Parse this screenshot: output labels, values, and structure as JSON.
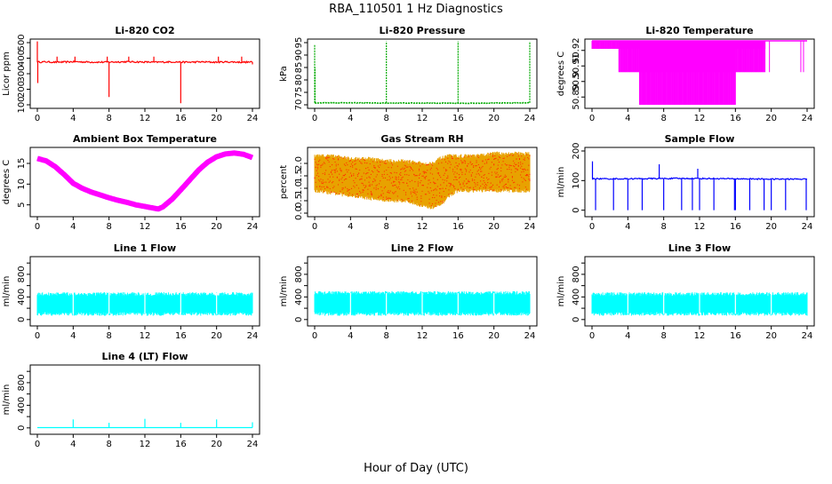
{
  "title": "RBA_110501  1 Hz Diagnostics",
  "xlabel": "Hour of Day (UTC)",
  "chart_data": [
    {
      "type": "line",
      "title": "Li-820 CO2",
      "ylabel": "Licor ppm",
      "color": "#ff0000",
      "xlim": [
        0,
        24
      ],
      "ylim": [
        100,
        500
      ],
      "xticks": [
        0,
        4,
        8,
        12,
        16,
        20,
        24
      ],
      "yticks": [
        100,
        200,
        300,
        400,
        500
      ],
      "series": [
        {
          "baseline": 375,
          "noise": 10,
          "x": [
            0,
            1,
            2,
            3,
            4,
            5,
            6,
            7,
            8,
            9,
            10,
            11,
            12,
            13,
            14,
            15,
            16,
            17,
            18,
            19,
            20,
            21,
            22,
            23,
            24
          ],
          "y": [
            375,
            376,
            374,
            375,
            377,
            376,
            375,
            374,
            375,
            376,
            377,
            376,
            375,
            374,
            375,
            376,
            375,
            374,
            376,
            375,
            374,
            376,
            375,
            374,
            375
          ],
          "spikes": [
            [
              0,
              540
            ],
            [
              0.05,
              240
            ],
            [
              2.2,
              410
            ],
            [
              4.2,
              410
            ],
            [
              7.8,
              410
            ],
            [
              8.0,
              150
            ],
            [
              10.2,
              410
            ],
            [
              13.0,
              410
            ],
            [
              16.0,
              110
            ],
            [
              20.2,
              410
            ],
            [
              22.8,
              410
            ],
            [
              24,
              360
            ]
          ]
        }
      ]
    },
    {
      "type": "line",
      "title": "Li-820 Pressure",
      "ylabel": "kPa",
      "color": "#00aa00",
      "xlim": [
        0,
        24
      ],
      "ylim": [
        70,
        95
      ],
      "xticks": [
        0,
        4,
        8,
        12,
        16,
        20,
        24
      ],
      "yticks": [
        70,
        75,
        80,
        85,
        90,
        95
      ],
      "series": [
        {
          "baseline": 70.8,
          "noise": 0.2,
          "x": [
            0,
            4,
            8,
            12,
            16,
            20,
            24
          ],
          "y": [
            70.8,
            70.8,
            70.7,
            70.7,
            70.6,
            70.7,
            70.8
          ],
          "spikes": [
            [
              0,
              94
            ],
            [
              0.05,
              85
            ],
            [
              8.0,
              97
            ],
            [
              16.0,
              97
            ],
            [
              24.0,
              97
            ]
          ]
        }
      ]
    },
    {
      "type": "line",
      "title": "Li-820 Temperature",
      "ylabel": "degrees C",
      "color": "#ff00ff",
      "xlim": [
        0,
        24
      ],
      "ylim": [
        50.885,
        50.925
      ],
      "xticks": [
        0,
        4,
        8,
        12,
        16,
        20,
        24
      ],
      "yticks": [
        50.89,
        50.9,
        50.91,
        50.92
      ],
      "ytick_labels": [
        "50.89",
        "",
        "",
        "50.92"
      ],
      "ytick_labels_right": [
        "",
        "50.9",
        "50.91",
        ""
      ],
      "bands": [
        {
          "x0": 0.0,
          "x1": 19.3,
          "ylo": 50.921,
          "yhi": 50.927
        },
        {
          "x0": 3.0,
          "x1": 19.3,
          "ylo": 50.906,
          "yhi": 50.927
        },
        {
          "x0": 5.3,
          "x1": 16.0,
          "ylo": 50.885,
          "yhi": 50.927
        }
      ]
    },
    {
      "type": "line",
      "title": "Ambient Box Temperature",
      "ylabel": "degrees C",
      "color": "#ff00ff",
      "xlim": [
        0,
        24
      ],
      "ylim": [
        3,
        18
      ],
      "xticks": [
        0,
        4,
        8,
        12,
        16,
        20,
        24
      ],
      "yticks": [
        5,
        10,
        15
      ],
      "series": [
        {
          "x": [
            0,
            1,
            2,
            3,
            4,
            5,
            6,
            7,
            8,
            9,
            10,
            11,
            12,
            13,
            13.5,
            14,
            15,
            16,
            17,
            18,
            19,
            20,
            21,
            22,
            23,
            24
          ],
          "y": [
            16.2,
            15.6,
            14.2,
            12.3,
            10.2,
            9.0,
            8.1,
            7.4,
            6.7,
            6.1,
            5.6,
            5.0,
            4.6,
            4.2,
            4.0,
            4.5,
            6.3,
            8.6,
            11.0,
            13.4,
            15.3,
            16.6,
            17.3,
            17.5,
            17.2,
            16.4
          ]
        }
      ]
    },
    {
      "type": "line",
      "title": "Gas Stream RH",
      "ylabel": "percent",
      "color": "#e8a200",
      "xlim": [
        0,
        24
      ],
      "ylim": [
        0,
        2.5
      ],
      "xticks": [
        0,
        4,
        8,
        12,
        16,
        20,
        24
      ],
      "yticks": [
        0.0,
        0.5,
        1.0,
        1.5,
        2.0
      ],
      "ytick_labels": [
        "0.0",
        "0.5",
        "1.0",
        "1.5",
        "2.0"
      ],
      "envelope": {
        "x": [
          0,
          2,
          4,
          6,
          8,
          10,
          12,
          13,
          14,
          15,
          16,
          18,
          20,
          22,
          24
        ],
        "ymin": [
          0.9,
          0.8,
          0.7,
          0.6,
          0.5,
          0.5,
          0.3,
          0.2,
          0.3,
          0.7,
          0.9,
          0.9,
          0.9,
          0.9,
          0.9
        ],
        "ymax": [
          2.3,
          2.3,
          2.2,
          2.2,
          2.1,
          2.1,
          2.0,
          2.0,
          2.2,
          2.3,
          2.3,
          2.3,
          2.4,
          2.4,
          2.4
        ]
      }
    },
    {
      "type": "line",
      "title": "Sample Flow",
      "ylabel": "ml/min",
      "color": "#0000ff",
      "xlim": [
        0,
        24
      ],
      "ylim": [
        -10,
        200
      ],
      "xticks": [
        0,
        4,
        8,
        12,
        16,
        20,
        24
      ],
      "yticks": [
        0,
        100,
        200
      ],
      "series": [
        {
          "baseline": 106,
          "noise": 4,
          "x": [
            0,
            4,
            8,
            12,
            16,
            20,
            24
          ],
          "y": [
            106,
            106,
            107,
            107,
            106,
            105,
            105
          ],
          "spikes": [
            [
              0.05,
              165
            ],
            [
              0.4,
              0
            ],
            [
              2.4,
              0
            ],
            [
              4.0,
              0
            ],
            [
              5.6,
              0
            ],
            [
              7.5,
              155
            ],
            [
              8.0,
              0
            ],
            [
              10.0,
              0
            ],
            [
              11.2,
              0
            ],
            [
              11.8,
              140
            ],
            [
              12.0,
              0
            ],
            [
              13.6,
              0
            ],
            [
              15.9,
              0
            ],
            [
              16.0,
              0
            ],
            [
              17.6,
              0
            ],
            [
              19.2,
              0
            ],
            [
              20.0,
              0
            ],
            [
              21.6,
              0
            ],
            [
              23.9,
              0
            ]
          ]
        }
      ]
    },
    {
      "type": "line",
      "title": "Line 1 Flow",
      "ylabel": "ml/min",
      "color": "#00ffff",
      "xlim": [
        0,
        24
      ],
      "ylim": [
        -50,
        1050
      ],
      "xticks": [
        0,
        4,
        8,
        12,
        16,
        20,
        24
      ],
      "yticks": [
        0,
        200,
        400,
        600,
        800,
        1000
      ],
      "ytick_labels": [
        "0",
        "",
        "400",
        "",
        "800",
        ""
      ],
      "envelope": {
        "x": [
          0,
          24
        ],
        "ymin": [
          100,
          100
        ],
        "ymax": [
          450,
          450
        ]
      }
    },
    {
      "type": "line",
      "title": "Line 2 Flow",
      "ylabel": "ml/min",
      "color": "#00ffff",
      "xlim": [
        0,
        24
      ],
      "ylim": [
        -50,
        1050
      ],
      "xticks": [
        0,
        4,
        8,
        12,
        16,
        20,
        24
      ],
      "yticks": [
        0,
        200,
        400,
        600,
        800,
        1000
      ],
      "ytick_labels": [
        "0",
        "",
        "400",
        "",
        "800",
        ""
      ],
      "envelope": {
        "x": [
          0,
          24
        ],
        "ymin": [
          100,
          100
        ],
        "ymax": [
          470,
          470
        ]
      }
    },
    {
      "type": "line",
      "title": "Line 3 Flow",
      "ylabel": "ml/min",
      "color": "#00ffff",
      "xlim": [
        0,
        24
      ],
      "ylim": [
        -50,
        1050
      ],
      "xticks": [
        0,
        4,
        8,
        12,
        16,
        20,
        24
      ],
      "yticks": [
        0,
        200,
        400,
        600,
        800,
        1000
      ],
      "ytick_labels": [
        "0",
        "",
        "400",
        "",
        "800",
        ""
      ],
      "envelope": {
        "x": [
          0,
          24
        ],
        "ymin": [
          100,
          100
        ],
        "ymax": [
          450,
          450
        ]
      }
    },
    {
      "type": "line",
      "title": "Line 4 (LT) Flow",
      "ylabel": "ml/min",
      "color": "#00ffff",
      "xlim": [
        0,
        24
      ],
      "ylim": [
        -50,
        1050
      ],
      "xticks": [
        0,
        4,
        8,
        12,
        16,
        20,
        24
      ],
      "yticks": [
        0,
        200,
        400,
        600,
        800,
        1000
      ],
      "ytick_labels": [
        "0",
        "",
        "400",
        "",
        "800",
        ""
      ],
      "series": [
        {
          "baseline": 5,
          "x": [
            0,
            24
          ],
          "y": [
            5,
            5
          ],
          "spikes": [
            [
              4.0,
              150
            ],
            [
              8.0,
              90
            ],
            [
              12.0,
              160
            ],
            [
              16.0,
              90
            ],
            [
              20.0,
              150
            ],
            [
              24.0,
              100
            ]
          ]
        }
      ]
    }
  ]
}
